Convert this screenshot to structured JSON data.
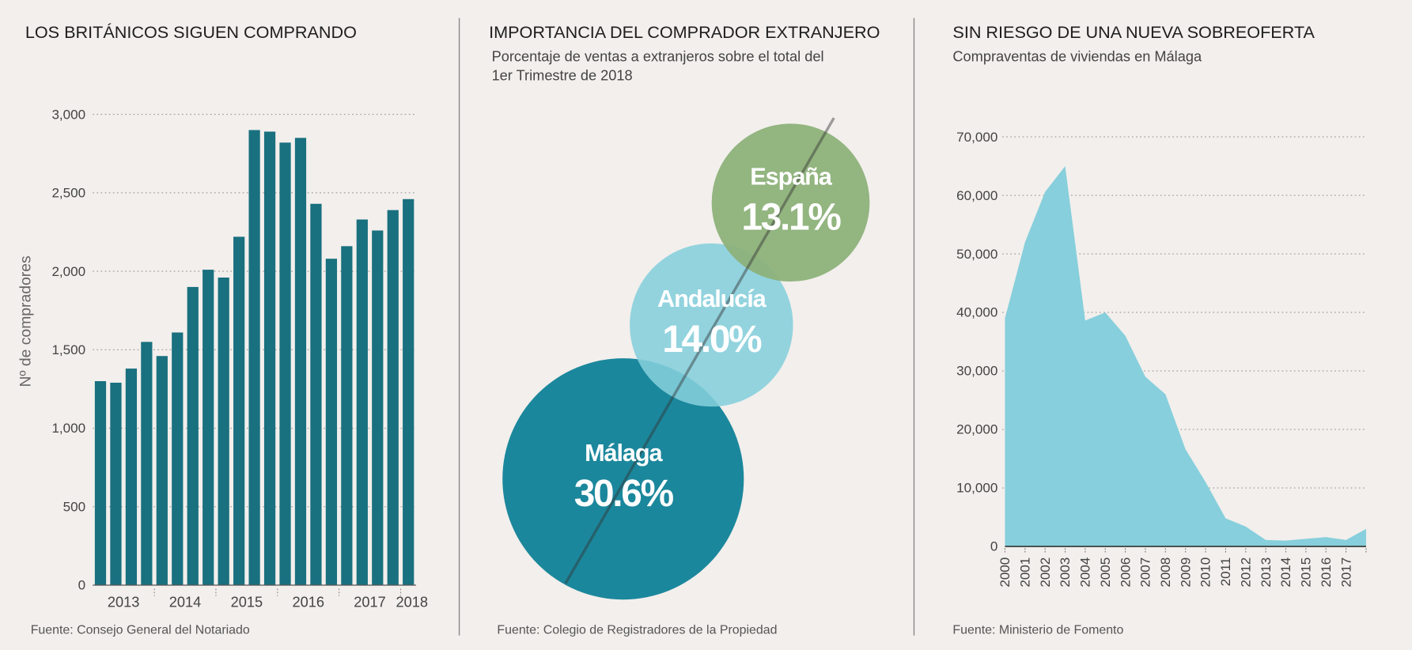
{
  "chart_data": [
    {
      "type": "bar",
      "title": "LOS BRITÁNICOS SIGUEN COMPRANDO",
      "y_label": "Nº de compradores",
      "source": "Fuente: Consejo General del Notariado",
      "categories": [
        null,
        "2013",
        null,
        null,
        null,
        "2014",
        null,
        null,
        null,
        "2015",
        null,
        null,
        null,
        "2016",
        null,
        null,
        null,
        "2017",
        null,
        null,
        "2018"
      ],
      "values": [
        1300,
        1290,
        1380,
        1550,
        1460,
        1610,
        1900,
        2010,
        1960,
        2220,
        2900,
        2890,
        2820,
        2850,
        2430,
        2080,
        2160,
        2330,
        2260,
        2390,
        2460
      ],
      "color": "#19707f",
      "ylim": [
        0,
        3000
      ],
      "yticks": [
        0,
        500,
        {
          "value": 1000,
          "label": "1,000"
        },
        {
          "value": 1500,
          "label": "1,500"
        },
        {
          "value": 2000,
          "label": "2,000"
        },
        {
          "value": 2500,
          "label": "2,500"
        },
        {
          "value": 3000,
          "label": "3,000"
        }
      ],
      "grid": true
    },
    {
      "type": "bubble",
      "title": "IMPORTANCIA DEL COMPRADOR EXTRANJERO",
      "subtitle": [
        "Porcentaje de ventas a extranjeros sobre el total del",
        "1er Trimestre de 2018"
      ],
      "source": "Fuente: Colegio de Registradores de la Propiedad",
      "categories": [
        "Málaga",
        "Andalucía",
        "España"
      ],
      "values": [
        30.6,
        14.0,
        13.1
      ],
      "value_labels": [
        "30.6%",
        "14.0%",
        "13.1%"
      ],
      "colors": [
        "#1b879c",
        "#84cfdc",
        "#8db17a"
      ]
    },
    {
      "type": "area",
      "title": "SIN RIESGO DE UNA NUEVA SOBREOFERTA",
      "subtitle": "Compraventas de viviendas en Málaga",
      "source": "Fuente: Ministerio de Fomento",
      "categories": [
        "2000",
        "2001",
        "2002",
        "2003",
        "2004",
        "2005",
        "2006",
        "2007",
        "2008",
        "2009",
        "2010",
        "2011",
        "2012",
        "2013",
        "2014",
        "2015",
        "2016",
        "2017",
        null
      ],
      "values": [
        39000,
        52000,
        60600,
        65000,
        38600,
        40000,
        36000,
        29000,
        26000,
        16600,
        11000,
        4800,
        3400,
        1100,
        1000,
        1300,
        1600,
        1100,
        3000
      ],
      "color": "#87cfdc",
      "ylim": [
        0,
        70000
      ],
      "yticks": [
        0,
        {
          "value": 10000,
          "label": "10,000"
        },
        {
          "value": 20000,
          "label": "20,000"
        },
        {
          "value": 30000,
          "label": "30,000"
        },
        {
          "value": 40000,
          "label": "40,000"
        },
        {
          "value": 50000,
          "label": "50,000"
        },
        {
          "value": 60000,
          "label": "60,000"
        },
        {
          "value": 70000,
          "label": "70,000"
        }
      ],
      "grid": true
    }
  ]
}
